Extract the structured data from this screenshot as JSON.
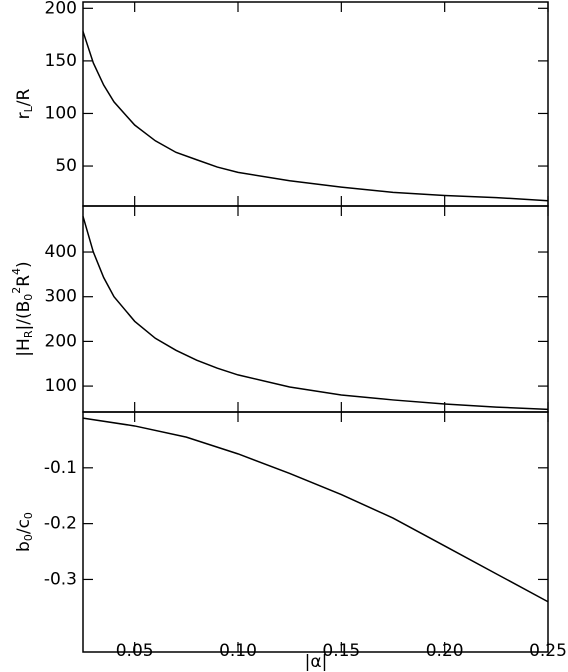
{
  "chart_data": [
    {
      "type": "line",
      "ylabel": [
        "r",
        "L",
        "/R"
      ],
      "x": [
        0.025,
        0.03,
        0.035,
        0.04,
        0.05,
        0.06,
        0.07,
        0.08,
        0.09,
        0.1,
        0.125,
        0.15,
        0.175,
        0.2,
        0.225,
        0.25
      ],
      "values": [
        178,
        148,
        127,
        111,
        89,
        74,
        63,
        56,
        49,
        44,
        36,
        30,
        25,
        22,
        20,
        17
      ],
      "color": "#000000",
      "xlim": [
        0.025,
        0.25
      ],
      "ylim": [
        12,
        206
      ],
      "yticks": [
        50,
        100,
        150,
        200
      ]
    },
    {
      "type": "line",
      "ylabel": [
        "|H",
        "R",
        "|/(B",
        "0",
        "2",
        "R",
        "4",
        ")"
      ],
      "x": [
        0.025,
        0.03,
        0.035,
        0.04,
        0.05,
        0.06,
        0.07,
        0.08,
        0.09,
        0.1,
        0.125,
        0.15,
        0.175,
        0.2,
        0.225,
        0.25
      ],
      "values": [
        480,
        400,
        343,
        300,
        245,
        207,
        180,
        158,
        140,
        125,
        98,
        80,
        69,
        60,
        53,
        48
      ],
      "color": "#000000",
      "xlim": [
        0.025,
        0.25
      ],
      "ylim": [
        42,
        503
      ],
      "yticks": [
        100,
        200,
        300,
        400
      ]
    },
    {
      "type": "line",
      "ylabel": [
        "b",
        "0",
        "/c",
        "0"
      ],
      "xlabel": "|α|",
      "x": [
        0.025,
        0.05,
        0.075,
        0.1,
        0.125,
        0.15,
        0.175,
        0.2,
        0.225,
        0.25
      ],
      "values": [
        -0.011,
        -0.025,
        -0.045,
        -0.075,
        -0.11,
        -0.148,
        -0.19,
        -0.24,
        -0.29,
        -0.34
      ],
      "color": "#000000",
      "xlim": [
        0.025,
        0.25
      ],
      "ylim": [
        -0.43,
        0.0
      ],
      "yticks": [
        -0.1,
        -0.2,
        -0.3
      ],
      "xticks": [
        0.05,
        {
          "value": 0.1,
          "label": "0.10"
        },
        0.15,
        {
          "value": 0.2,
          "label": "0.20"
        },
        0.25
      ]
    }
  ]
}
